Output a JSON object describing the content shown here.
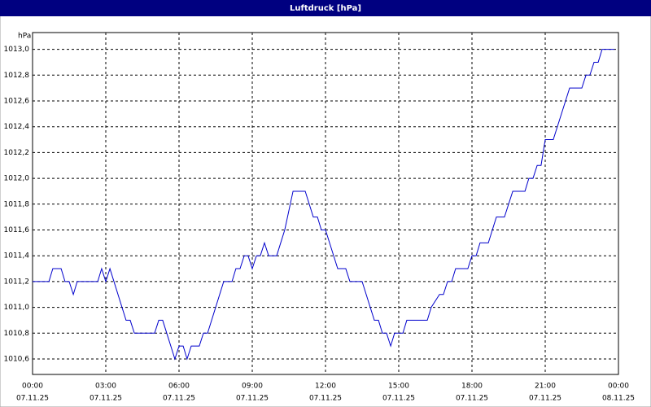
{
  "chart_data": {
    "type": "line",
    "title": "Luftdruck [hPa]",
    "y_unit": "hPa",
    "x": [
      0,
      0.67,
      0.83,
      1.17,
      1.33,
      1.5,
      1.67,
      1.83,
      2.67,
      2.83,
      3.0,
      3.17,
      3.83,
      4.0,
      4.17,
      5.0,
      5.17,
      5.33,
      5.83,
      6.0,
      6.17,
      6.33,
      6.5,
      6.83,
      7.0,
      7.17,
      7.83,
      8.17,
      8.33,
      8.5,
      8.67,
      8.83,
      9.0,
      9.17,
      9.33,
      9.5,
      9.67,
      10.0,
      10.33,
      10.67,
      11.17,
      11.5,
      11.67,
      11.83,
      12.0,
      12.5,
      12.83,
      13.0,
      13.5,
      14.0,
      14.17,
      14.33,
      14.5,
      14.67,
      14.83,
      15.17,
      15.33,
      16.17,
      16.33,
      16.67,
      16.83,
      17.0,
      17.17,
      17.33,
      17.83,
      18.0,
      18.17,
      18.33,
      18.67,
      19.0,
      19.33,
      19.67,
      20.17,
      20.33,
      20.5,
      20.67,
      20.83,
      21.0,
      21.33,
      22.0,
      22.5,
      22.67,
      22.83,
      23.0,
      23.17,
      23.33,
      23.83
    ],
    "values": [
      1011.2,
      1011.2,
      1011.3,
      1011.3,
      1011.2,
      1011.2,
      1011.1,
      1011.2,
      1011.2,
      1011.3,
      1011.2,
      1011.3,
      1010.9,
      1010.9,
      1010.8,
      1010.8,
      1010.9,
      1010.9,
      1010.6,
      1010.7,
      1010.7,
      1010.6,
      1010.7,
      1010.7,
      1010.8,
      1010.8,
      1011.2,
      1011.2,
      1011.3,
      1011.3,
      1011.4,
      1011.4,
      1011.3,
      1011.4,
      1011.4,
      1011.5,
      1011.4,
      1011.4,
      1011.6,
      1011.9,
      1011.9,
      1011.7,
      1011.7,
      1011.6,
      1011.6,
      1011.3,
      1011.3,
      1011.2,
      1011.2,
      1010.9,
      1010.9,
      1010.8,
      1010.8,
      1010.7,
      1010.8,
      1010.8,
      1010.9,
      1010.9,
      1011.0,
      1011.1,
      1011.1,
      1011.2,
      1011.2,
      1011.3,
      1011.3,
      1011.4,
      1011.4,
      1011.5,
      1011.5,
      1011.7,
      1011.7,
      1011.9,
      1011.9,
      1012.0,
      1012.0,
      1012.1,
      1012.1,
      1012.3,
      1012.3,
      1012.7,
      1012.7,
      1012.8,
      1012.8,
      1012.9,
      1012.9,
      1013.0,
      1013.0
    ],
    "color": "#0000cc",
    "xlim": [
      0,
      24
    ],
    "xticks": [
      {
        "value": 0,
        "label": "00:00"
      },
      {
        "value": 3,
        "label": "03:00"
      },
      {
        "value": 6,
        "label": "06:00"
      },
      {
        "value": 9,
        "label": "09:00"
      },
      {
        "value": 12,
        "label": "12:00"
      },
      {
        "value": 15,
        "label": "15:00"
      },
      {
        "value": 18,
        "label": "18:00"
      },
      {
        "value": 21,
        "label": "21:00"
      },
      {
        "value": 24,
        "label": "00:00"
      }
    ],
    "xtick_dates": [
      "07.11.25",
      "07.11.25",
      "07.11.25",
      "07.11.25",
      "07.11.25",
      "07.11.25",
      "07.11.25",
      "07.11.25",
      "08.11.25"
    ],
    "ylim": [
      1010.48,
      1013.13
    ],
    "yticks": [
      {
        "value": 1010.6,
        "label": "1010,6"
      },
      {
        "value": 1010.8,
        "label": "1010,8"
      },
      {
        "value": 1011.0,
        "label": "1011,0"
      },
      {
        "value": 1011.2,
        "label": "1011,2"
      },
      {
        "value": 1011.4,
        "label": "1011,4"
      },
      {
        "value": 1011.6,
        "label": "1011,6"
      },
      {
        "value": 1011.8,
        "label": "1011,8"
      },
      {
        "value": 1012.0,
        "label": "1012,0"
      },
      {
        "value": 1012.2,
        "label": "1012,2"
      },
      {
        "value": 1012.4,
        "label": "1012,4"
      },
      {
        "value": 1012.6,
        "label": "1012,6"
      },
      {
        "value": 1012.8,
        "label": "1012,8"
      },
      {
        "value": 1013.0,
        "label": "1013,0"
      }
    ],
    "grid": true
  }
}
